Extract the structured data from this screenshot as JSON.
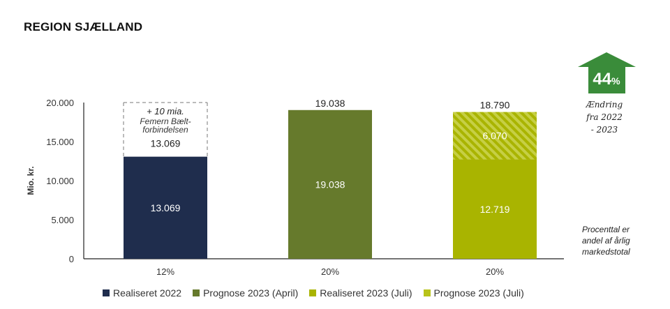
{
  "title": "REGION SJÆLLAND",
  "chart_data": {
    "type": "bar",
    "stacked": true,
    "ylabel": "Mio. kr.",
    "ylim": [
      0,
      20000
    ],
    "yticks": [
      "20.000",
      "15.000",
      "10.000",
      "5.000",
      "0"
    ],
    "ytick_values": [
      20000,
      15000,
      10000,
      5000,
      0
    ],
    "categories": [
      "12%",
      "20%",
      "20%"
    ],
    "bars": [
      {
        "segments": [
          {
            "series": "Realiseret 2022",
            "value": 13069,
            "label": "13.069",
            "color": "#1f2d4d"
          }
        ],
        "dashed_extension": {
          "from": 13069,
          "to": 20000,
          "text_lines": [
            "+ 10 mia.",
            "Femern Bælt-",
            "forbindelsen"
          ],
          "label": "13.069"
        }
      },
      {
        "segments": [
          {
            "series": "Prognose 2023 (April)",
            "value": 19038,
            "label": "19.038",
            "color": "#667a2c"
          }
        ],
        "total_label": "19.038"
      },
      {
        "segments": [
          {
            "series": "Realiseret 2023 (Juli)",
            "value": 12719,
            "label": "12.719",
            "color": "#a9b400"
          },
          {
            "series": "Prognose 2023 (Juli)",
            "value": 6070,
            "label": "6.070",
            "color": "#b8c31a",
            "hatched": true
          }
        ],
        "total_label": "18.790"
      }
    ],
    "legend": [
      {
        "name": "Realiseret 2022",
        "color": "#1f2d4d"
      },
      {
        "name": "Prognose 2023 (April)",
        "color": "#667a2c"
      },
      {
        "name": "Realiseret 2023 (Juli)",
        "color": "#a9b400"
      },
      {
        "name": "Prognose 2023 (Juli)",
        "color": "#b8c31a"
      }
    ],
    "legend_position": "bottom"
  },
  "badge": {
    "value": "44",
    "unit": "%",
    "color": "#3a8c3a",
    "caption_lines": [
      "Ændring",
      "fra 2022",
      "- 2023"
    ]
  },
  "side_note_lines": [
    "Procenttal er",
    "andel af årlig",
    "markedstotal"
  ]
}
